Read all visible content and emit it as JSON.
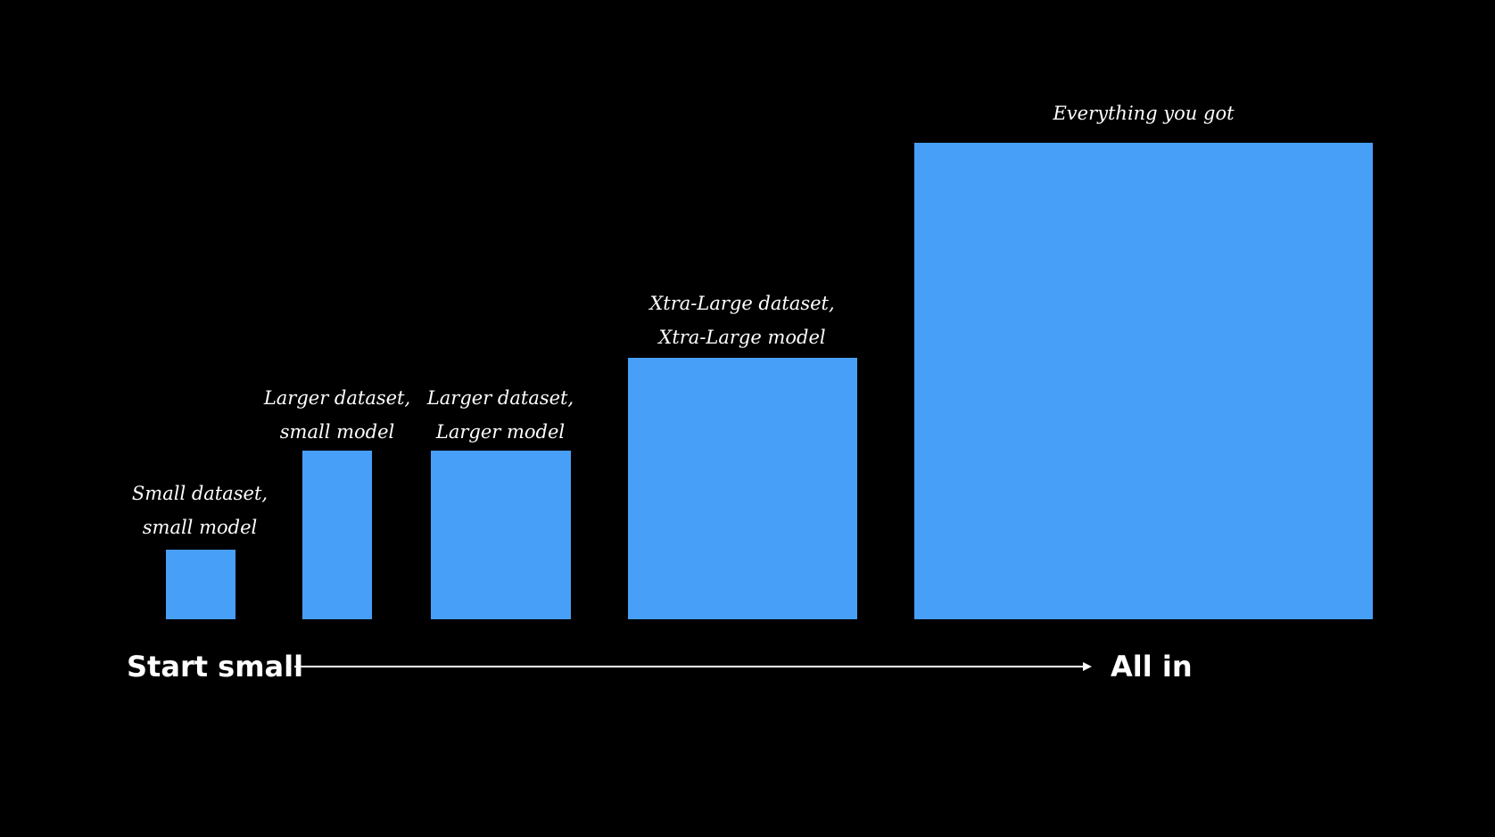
{
  "colors": {
    "background": "#000000",
    "block": "#489ff7",
    "text": "#ffffff"
  },
  "stages": [
    {
      "line1": "Small dataset,",
      "line2": "small model"
    },
    {
      "line1": "Larger dataset,",
      "line2": "small model"
    },
    {
      "line1": "Larger dataset,",
      "line2": "Larger model"
    },
    {
      "line1": "Xtra-Large dataset,",
      "line2": "Xtra-Large model"
    },
    {
      "line1": "Everything you got",
      "line2": ""
    }
  ],
  "axis": {
    "start_label": "Start small",
    "end_label": "All in",
    "arrow_icon": "arrow-right-icon"
  }
}
